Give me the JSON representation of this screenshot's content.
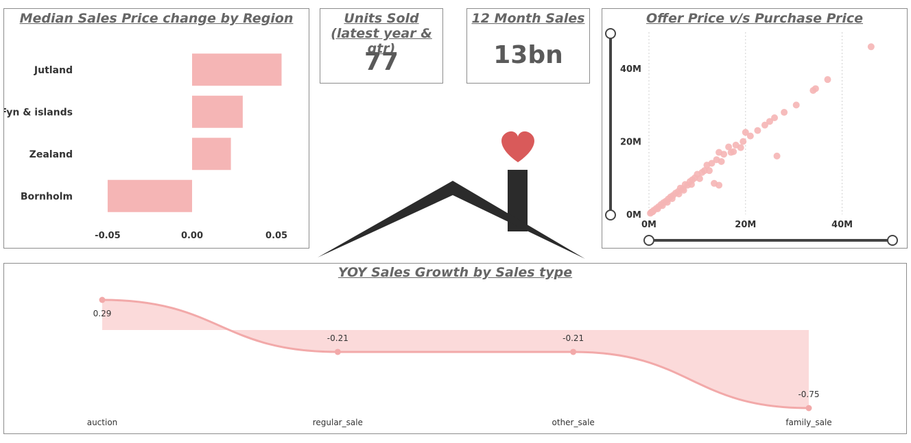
{
  "colors": {
    "bar": "#f5b5b5",
    "line": "#f2a9a9",
    "area": "#fbdada",
    "heart": "#d95a5a",
    "house": "#2b2b2b",
    "slider": "#444444"
  },
  "kpis": {
    "units_sold": {
      "title": "Units Sold (latest year & qtr)",
      "value": "77"
    },
    "sales_12m": {
      "title": "12 Month Sales",
      "value": "13bn"
    }
  },
  "chart_data": [
    {
      "type": "bar",
      "orientation": "horizontal",
      "title": "Median Sales Price change by Region",
      "categories": [
        "Jutland",
        "Fyn & islands",
        "Zealand",
        "Bornholm"
      ],
      "values": [
        0.053,
        0.03,
        0.023,
        -0.05
      ],
      "xlim": [
        -0.065,
        0.065
      ],
      "xticks": [
        "-0.05",
        "0.00",
        "0.05"
      ],
      "xtick_values": [
        -0.05,
        0.0,
        0.05
      ]
    },
    {
      "type": "scatter",
      "title": "Offer Price v/s Purchase Price",
      "xlim": [
        0,
        50000000
      ],
      "ylim": [
        0,
        50000000
      ],
      "xticks": [
        "0M",
        "20M",
        "40M"
      ],
      "yticks": [
        "0M",
        "20M",
        "40M"
      ],
      "tick_values": [
        0,
        20000000,
        40000000
      ],
      "points": [
        [
          46000000,
          46000000
        ],
        [
          37000000,
          37000000
        ],
        [
          34500000,
          34500000
        ],
        [
          34000000,
          34000000
        ],
        [
          30500000,
          30000000
        ],
        [
          28000000,
          28000000
        ],
        [
          26500000,
          16000000
        ],
        [
          26000000,
          26500000
        ],
        [
          25000000,
          25500000
        ],
        [
          24000000,
          24500000
        ],
        [
          22500000,
          23000000
        ],
        [
          21000000,
          21500000
        ],
        [
          20000000,
          22500000
        ],
        [
          19500000,
          20000000
        ],
        [
          18000000,
          19000000
        ],
        [
          16500000,
          18500000
        ],
        [
          17000000,
          17000000
        ],
        [
          15500000,
          16500000
        ],
        [
          14500000,
          17000000
        ],
        [
          14000000,
          15000000
        ],
        [
          14500000,
          8000000
        ],
        [
          13500000,
          8500000
        ],
        [
          13000000,
          14000000
        ],
        [
          12000000,
          13500000
        ],
        [
          11500000,
          12000000
        ],
        [
          11000000,
          11500000
        ],
        [
          10000000,
          11000000
        ],
        [
          9500000,
          10000000
        ],
        [
          9000000,
          9500000
        ],
        [
          8500000,
          9000000
        ],
        [
          8000000,
          8000000
        ],
        [
          7500000,
          8200000
        ],
        [
          7000000,
          7000000
        ],
        [
          6500000,
          7200000
        ],
        [
          6000000,
          6200000
        ],
        [
          5500000,
          5800000
        ],
        [
          5000000,
          5200000
        ],
        [
          4500000,
          4800000
        ],
        [
          4000000,
          4200000
        ],
        [
          3500000,
          3600000
        ],
        [
          3000000,
          3200000
        ],
        [
          2500000,
          2700000
        ],
        [
          2000000,
          2100000
        ],
        [
          1500000,
          1600000
        ],
        [
          1000000,
          1100000
        ],
        [
          500000,
          600000
        ],
        [
          300000,
          300000
        ],
        [
          800000,
          700000
        ],
        [
          1800000,
          1500000
        ],
        [
          2800000,
          2400000
        ],
        [
          3800000,
          3300000
        ],
        [
          4800000,
          4300000
        ],
        [
          6200000,
          5600000
        ],
        [
          7200000,
          6600000
        ],
        [
          8800000,
          8200000
        ],
        [
          10500000,
          9800000
        ],
        [
          12500000,
          12000000
        ],
        [
          15000000,
          14500000
        ],
        [
          17500000,
          17200000
        ],
        [
          19000000,
          18300000
        ]
      ]
    },
    {
      "type": "area",
      "title": "YOY Sales Growth by Sales type",
      "categories": [
        "auction",
        "regular_sale",
        "other_sale",
        "family_sale"
      ],
      "values": [
        0.29,
        -0.21,
        -0.21,
        -0.75
      ],
      "data_labels": [
        "0.29",
        "-0.21",
        "-0.21",
        "-0.75"
      ],
      "ylim": [
        -0.75,
        0.29
      ]
    }
  ]
}
